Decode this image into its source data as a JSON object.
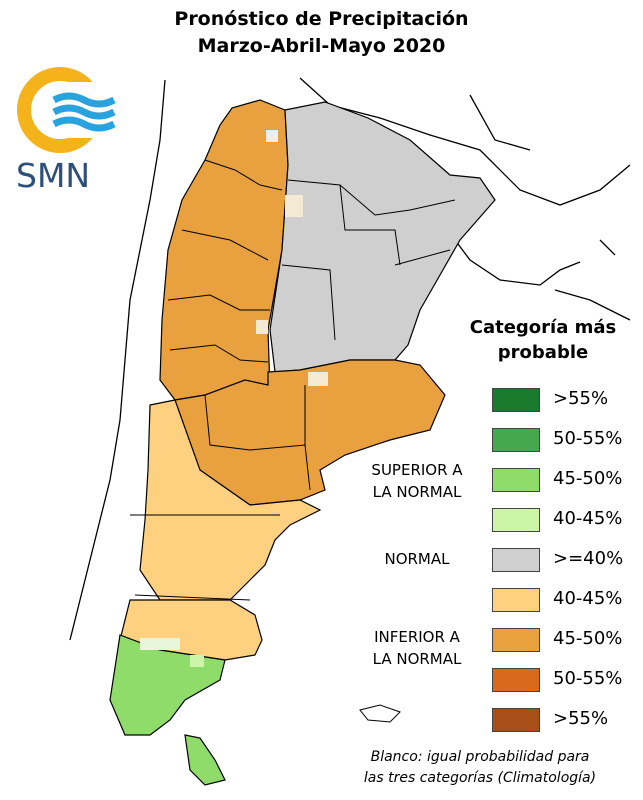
{
  "title": {
    "line1": "Pronóstico de Precipitación",
    "line2": "Marzo-Abril-Mayo 2020"
  },
  "logo": {
    "text": "SMN",
    "icon": "smn-logo"
  },
  "legend": {
    "title_line1": "Categoría más",
    "title_line2": "probable",
    "groups": {
      "superior": {
        "line1": "SUPERIOR A",
        "line2": "LA NORMAL"
      },
      "normal": {
        "line1": "NORMAL"
      },
      "inferior": {
        "line1": "INFERIOR A",
        "line2": "LA NORMAL"
      }
    },
    "items": [
      {
        "label": ">55%",
        "color": "#1a7a2e",
        "category": "superior"
      },
      {
        "label": "50-55%",
        "color": "#45a84f",
        "category": "superior"
      },
      {
        "label": "45-50%",
        "color": "#8fdc6a",
        "category": "superior"
      },
      {
        "label": "40-45%",
        "color": "#cdf5a8",
        "category": "superior"
      },
      {
        "label": ">=40%",
        "color": "#cfcfcf",
        "category": "normal"
      },
      {
        "label": "40-45%",
        "color": "#fdd17f",
        "category": "inferior"
      },
      {
        "label": "45-50%",
        "color": "#e8a13e",
        "category": "inferior"
      },
      {
        "label": "50-55%",
        "color": "#d9691c",
        "category": "inferior"
      },
      {
        "label": ">55%",
        "color": "#a74f17",
        "category": "inferior"
      }
    ],
    "note_line1": "Blanco: igual probabilidad para",
    "note_line2": "las tres categorías (Climatología)"
  }
}
